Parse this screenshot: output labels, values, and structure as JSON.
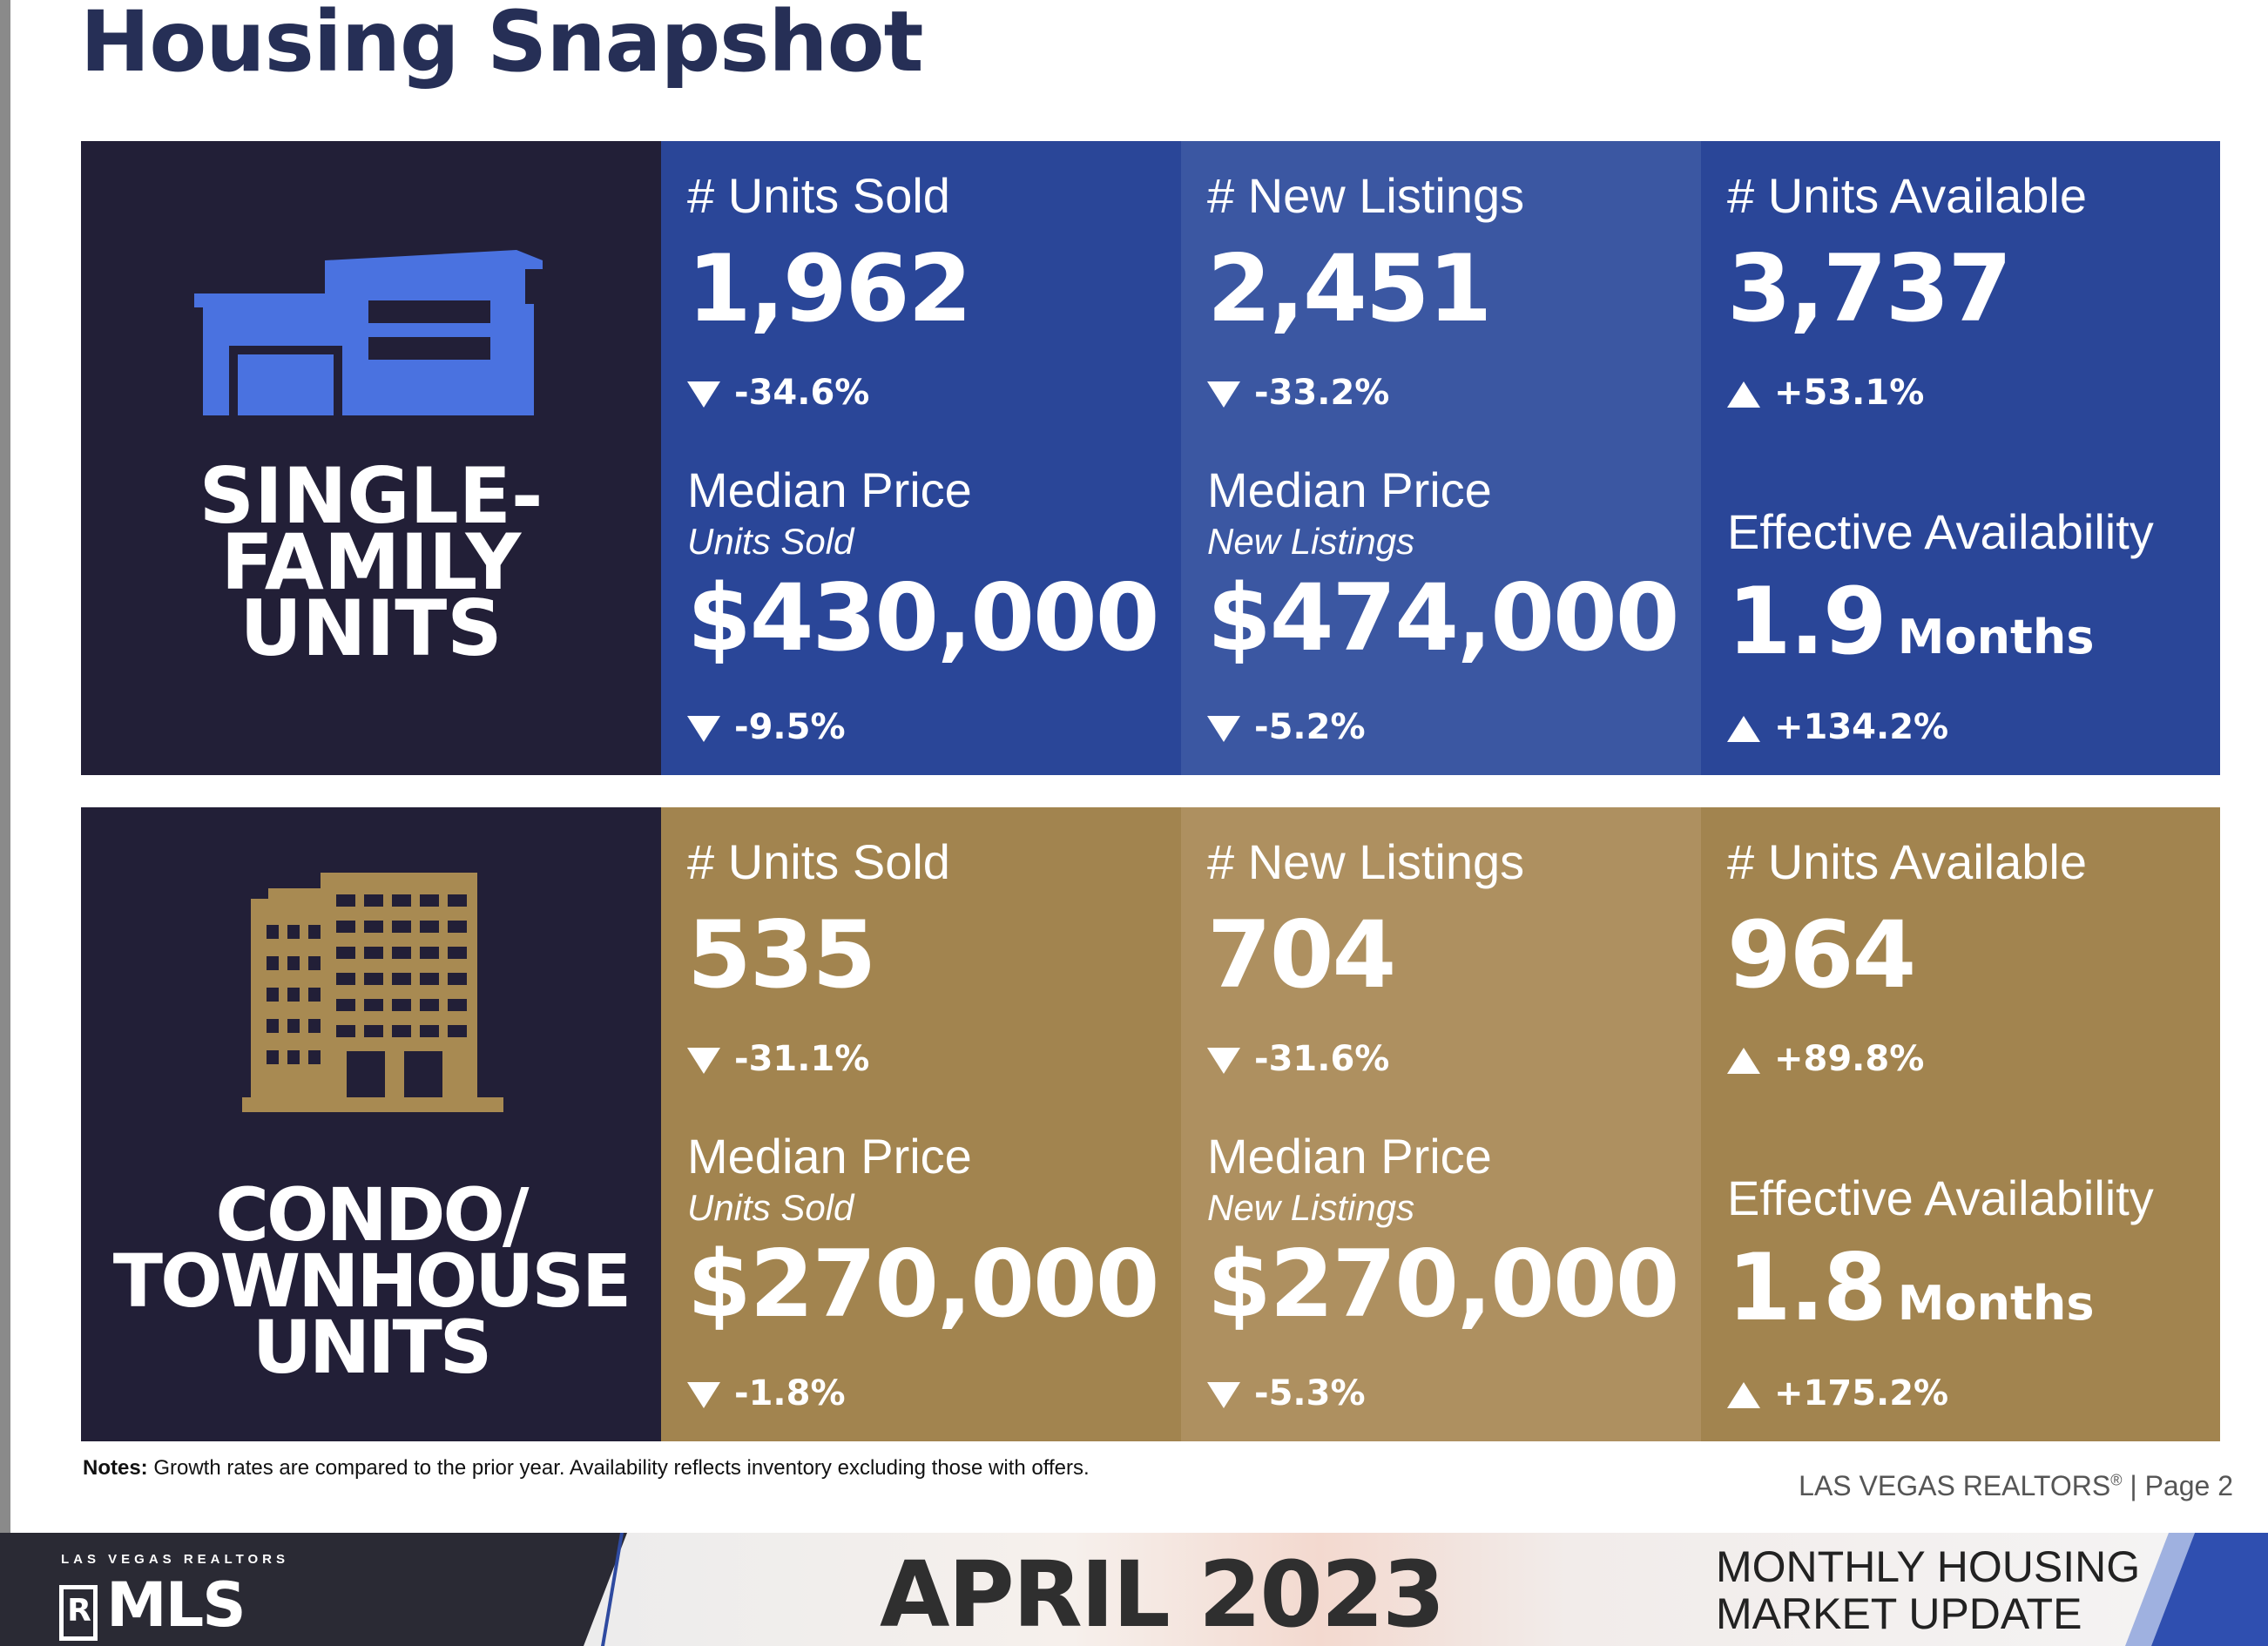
{
  "page_title": "Housing Snapshot",
  "sections": [
    {
      "label_lines": [
        "SINGLE-",
        "FAMILY",
        "UNITS"
      ],
      "icon": "house-icon",
      "colors": {
        "panel": "#221f37",
        "accent": "#4a72e0",
        "col_dark": "#2a4698",
        "col_light": "#3b57a2"
      },
      "units_sold": {
        "title": "# Units Sold",
        "value": "1,962",
        "change": "-34.6%",
        "direction": "down"
      },
      "new_listings": {
        "title": "# New Listings",
        "value": "2,451",
        "change": "-33.2%",
        "direction": "down"
      },
      "units_available": {
        "title": "# Units Available",
        "value": "3,737",
        "change": "+53.1%",
        "direction": "up"
      },
      "median_sold": {
        "title": "Median Price",
        "subtitle": "Units Sold",
        "value": "$430,000",
        "change": "-9.5%",
        "direction": "down"
      },
      "median_new": {
        "title": "Median Price",
        "subtitle": "New Listings",
        "value": "$474,000",
        "change": "-5.2%",
        "direction": "down"
      },
      "availability": {
        "title": "Effective Availability",
        "value": "1.9",
        "unit": "Months",
        "change": "+134.2%",
        "direction": "up"
      }
    },
    {
      "label_lines": [
        "CONDO/",
        "TOWNHOUSE",
        "UNITS"
      ],
      "icon": "building-icon",
      "colors": {
        "panel": "#221f37",
        "accent": "#a88a52",
        "col_dark": "#a2844f",
        "col_light": "#ae9060"
      },
      "units_sold": {
        "title": "# Units Sold",
        "value": "535",
        "change": "-31.1%",
        "direction": "down"
      },
      "new_listings": {
        "title": "# New Listings",
        "value": "704",
        "change": "-31.6%",
        "direction": "down"
      },
      "units_available": {
        "title": "# Units Available",
        "value": "964",
        "change": "+89.8%",
        "direction": "up"
      },
      "median_sold": {
        "title": "Median Price",
        "subtitle": "Units Sold",
        "value": "$270,000",
        "change": "-1.8%",
        "direction": "down"
      },
      "median_new": {
        "title": "Median Price",
        "subtitle": "New Listings",
        "value": "$270,000",
        "change": "-5.3%",
        "direction": "down"
      },
      "availability": {
        "title": "Effective Availability",
        "value": "1.8",
        "unit": "Months",
        "change": "+175.2%",
        "direction": "up"
      }
    }
  ],
  "notes": {
    "label": "Notes:",
    "text": " Growth rates are compared to the prior year. Availability reflects inventory excluding those with offers."
  },
  "footer": {
    "org": "LAS VEGAS REALTORS",
    "reg": "®",
    "page": " | Page 2"
  },
  "banner": {
    "logo_top": "LAS VEGAS REALTORS",
    "logo_r": "R",
    "logo_text": "MLS",
    "date": "APRIL 2023",
    "update_line1": "MONTHLY HOUSING",
    "update_line2": "MARKET UPDATE"
  }
}
